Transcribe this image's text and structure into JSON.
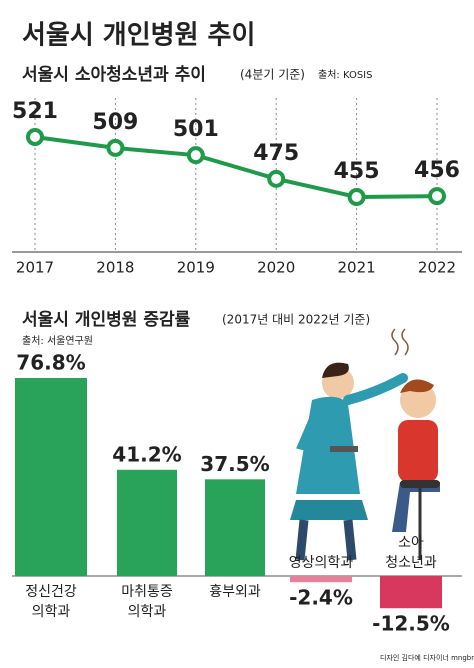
{
  "title": "서울시 개인병원 추이",
  "credit": "디자인 김다예 디자이너 mngbn@",
  "chart_data": [
    {
      "type": "line",
      "title": "서울시 소아청소년과 추이",
      "subtitle": "(4분기 기준)",
      "source": "출처: KOSIS",
      "categories": [
        "2017",
        "2018",
        "2019",
        "2020",
        "2021",
        "2022"
      ],
      "values": [
        521,
        509,
        501,
        475,
        455,
        456
      ],
      "color": "#1f9a4a"
    },
    {
      "type": "bar",
      "title": "서울시 개인병원 증감률",
      "subtitle": "(2017년 대비 2022년 기준)",
      "source": "출처: 서울연구원",
      "categories": [
        [
          "정신건강",
          "의학과"
        ],
        [
          "마취통증",
          "의학과"
        ],
        [
          "흉부외과"
        ],
        [
          "영상의학과"
        ],
        [
          "소아",
          "청소년과"
        ]
      ],
      "values": [
        76.8,
        41.2,
        37.5,
        -2.4,
        -12.5
      ],
      "value_labels": [
        "76.8%",
        "41.2%",
        "37.5%",
        "-2.4%",
        "-12.5%"
      ],
      "colors": [
        "#2aa35a",
        "#2aa35a",
        "#2aa35a",
        "#e7809a",
        "#d8385e"
      ],
      "label_colors": [
        "#22a050",
        "#22a050",
        "#22a050",
        "#d6304f",
        "#d6304f"
      ]
    }
  ]
}
